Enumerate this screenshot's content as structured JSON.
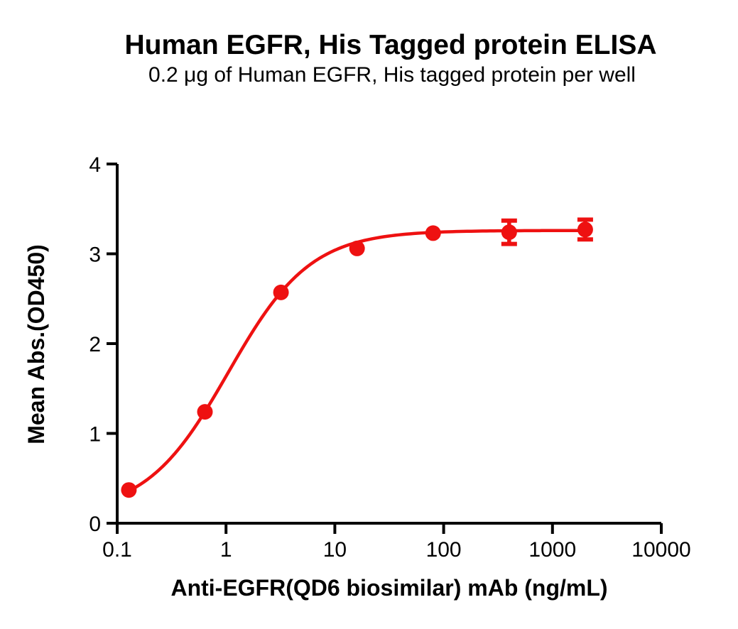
{
  "colors": {
    "accent": "#ee1111",
    "axis": "#000000",
    "text": "#000000",
    "background": "#ffffff"
  },
  "chart_data": {
    "type": "scatter",
    "title": "Human EGFR, His Tagged protein ELISA",
    "subtitle": "0.2 μg of Human EGFR, His tagged protein per well",
    "xlabel": "Anti-EGFR(QD6 biosimilar) mAb (ng/mL)",
    "ylabel": "Mean Abs.(OD450)",
    "x_scale": "log10",
    "xlim": [
      0.1,
      10000
    ],
    "ylim": [
      0,
      4
    ],
    "x_ticks": [
      0.1,
      1,
      10,
      100,
      1000,
      10000
    ],
    "x_tick_labels": [
      "0.1",
      "1",
      "10",
      "100",
      "1000",
      "10000"
    ],
    "y_ticks": [
      0,
      1,
      2,
      3,
      4
    ],
    "y_tick_labels": [
      "0",
      "1",
      "2",
      "3",
      "4"
    ],
    "grid": false,
    "legend": null,
    "series": [
      {
        "name": "Anti-EGFR(QD6 biosimilar) mAb",
        "color": "#ee1111",
        "marker": "circle",
        "points": [
          {
            "x": 0.128,
            "y": 0.37,
            "error": null
          },
          {
            "x": 0.64,
            "y": 1.24,
            "error": null
          },
          {
            "x": 3.2,
            "y": 2.57,
            "error": null
          },
          {
            "x": 16,
            "y": 3.06,
            "error": null
          },
          {
            "x": 80,
            "y": 3.23,
            "error": null
          },
          {
            "x": 400,
            "y": 3.24,
            "error": 0.13
          },
          {
            "x": 2000,
            "y": 3.27,
            "error": 0.11
          }
        ],
        "fit_curve": {
          "model": "4PL",
          "bottom": 0.1,
          "top": 3.26,
          "ec50": 1.05,
          "hill": 1.15,
          "x_start": 0.128,
          "x_end": 2000
        }
      }
    ]
  }
}
